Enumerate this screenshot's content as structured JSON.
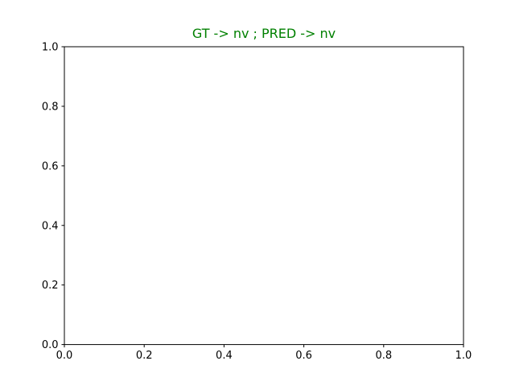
{
  "chart_data": {
    "type": "line",
    "title": "GT -> nv ; PRED -> nv",
    "title_color": "#008000",
    "xlabel": "",
    "ylabel": "",
    "xlim": [
      0.0,
      1.0
    ],
    "ylim": [
      0.0,
      1.0
    ],
    "x_ticks": [
      0.0,
      0.2,
      0.4,
      0.6,
      0.8,
      1.0
    ],
    "y_ticks": [
      0.0,
      0.2,
      0.4,
      0.6,
      0.8,
      1.0
    ],
    "x_tick_labels": [
      "0.0",
      "0.2",
      "0.4",
      "0.6",
      "0.8",
      "1.0"
    ],
    "y_tick_labels": [
      "0.0",
      "0.2",
      "0.4",
      "0.6",
      "0.8",
      "1.0"
    ],
    "series": [],
    "grid": false,
    "legend": "none",
    "axis_color": "#000000",
    "background": "#ffffff"
  }
}
